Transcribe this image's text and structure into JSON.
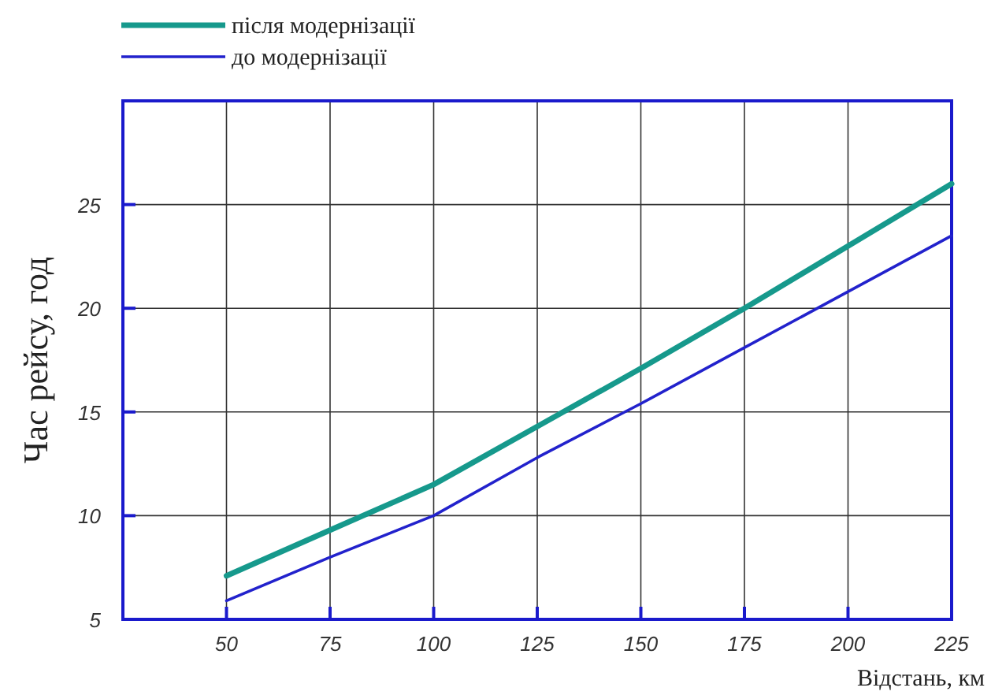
{
  "chart_data": {
    "type": "line",
    "xlabel": "Відстань, км",
    "ylabel": "Час рейсу, год",
    "x": [
      50,
      75,
      100,
      125,
      150,
      175,
      200,
      225
    ],
    "series": [
      {
        "name": "після модернізації",
        "color": "#16998c",
        "values": [
          7.1,
          9.3,
          11.5,
          14.3,
          17.1,
          20.0,
          23.0,
          26.0
        ]
      },
      {
        "name": "до модернізації",
        "color": "#2222cc",
        "values": [
          5.9,
          8.0,
          10.0,
          12.8,
          15.4,
          18.1,
          20.8,
          23.5
        ]
      }
    ],
    "xlim": [
      25,
      225
    ],
    "xticks": [
      50,
      75,
      100,
      125,
      150,
      175,
      200,
      225
    ],
    "ylim": [
      5,
      30
    ],
    "yticks": [
      5,
      10,
      15,
      20,
      25
    ],
    "grid": true,
    "legend": "top left",
    "marker": "none"
  }
}
